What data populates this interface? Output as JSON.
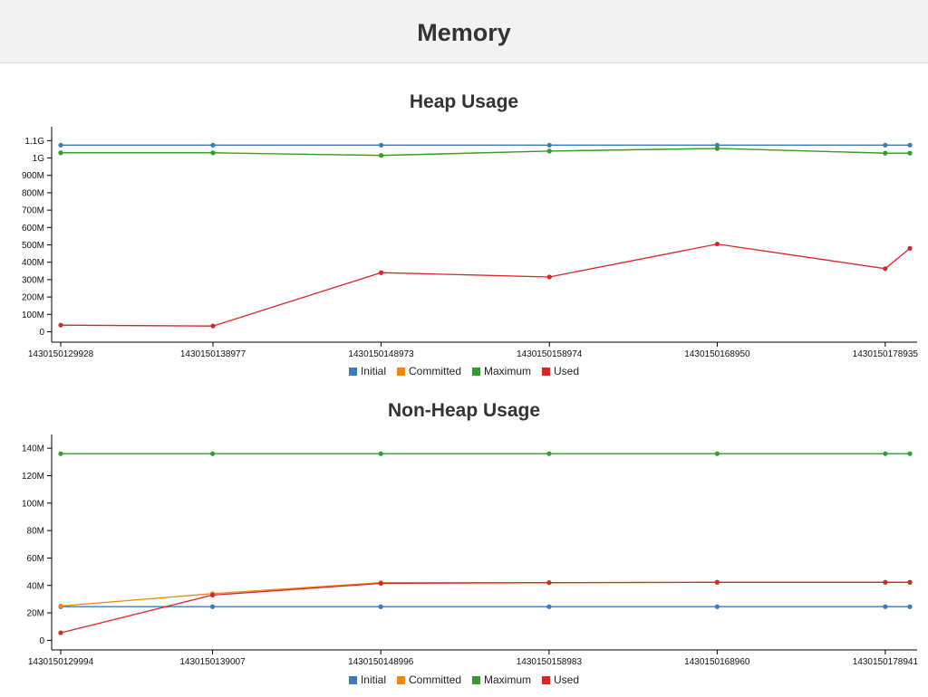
{
  "page": {
    "title": "Memory"
  },
  "colors": {
    "Initial": "#3a7bbf",
    "Committed": "#f0870f",
    "Maximum": "#2ca02c",
    "Used": "#d62728"
  },
  "legend": [
    "Initial",
    "Committed",
    "Maximum",
    "Used"
  ],
  "chart_data": [
    {
      "type": "line",
      "title": "Heap Usage",
      "x_tick_labels": [
        "1430150129928",
        "1430150138977",
        "1430150148973",
        "1430150158974",
        "1430150168950",
        "1430150178935"
      ],
      "y_tick_labels": [
        "0",
        "100M",
        "200M",
        "300M",
        "400M",
        "500M",
        "600M",
        "700M",
        "800M",
        "900M",
        "1G",
        "1.1G"
      ],
      "ylim_mb": [
        -60,
        1180
      ],
      "grid": false,
      "legend_position": "bottom",
      "x": [
        1430150129928,
        1430150138977,
        1430150148973,
        1430150158974,
        1430150168950,
        1430150178935,
        1430150180400
      ],
      "series": [
        {
          "name": "Initial",
          "values_mb": [
            1074,
            1074,
            1074,
            1074,
            1074,
            1074,
            1074
          ]
        },
        {
          "name": "Committed",
          "values_mb": [
            1030,
            1030,
            1015,
            1040,
            1055,
            1028,
            1028
          ]
        },
        {
          "name": "Maximum",
          "values_mb": [
            1030,
            1030,
            1015,
            1040,
            1055,
            1028,
            1028
          ]
        },
        {
          "name": "Used",
          "values_mb": [
            38,
            33,
            340,
            315,
            505,
            363,
            480
          ]
        }
      ]
    },
    {
      "type": "line",
      "title": "Non-Heap Usage",
      "x_tick_labels": [
        "1430150129994",
        "1430150139007",
        "1430150148996",
        "1430150158983",
        "1430150168960",
        "1430150178941"
      ],
      "y_tick_labels": [
        "0",
        "20M",
        "40M",
        "60M",
        "80M",
        "100M",
        "120M",
        "140M"
      ],
      "ylim_mb": [
        -7,
        150
      ],
      "grid": false,
      "legend_position": "bottom",
      "x": [
        1430150129994,
        1430150139007,
        1430150148996,
        1430150158983,
        1430150168960,
        1430150178941,
        1430150180400
      ],
      "series": [
        {
          "name": "Initial",
          "values_mb": [
            24.5,
            24.5,
            24.5,
            24.5,
            24.5,
            24.5,
            24.5
          ]
        },
        {
          "name": "Committed",
          "values_mb": [
            25,
            34,
            42,
            42,
            42.3,
            42.3,
            42.3
          ]
        },
        {
          "name": "Maximum",
          "values_mb": [
            136,
            136,
            136,
            136,
            136,
            136,
            136
          ]
        },
        {
          "name": "Used",
          "values_mb": [
            5.5,
            33,
            41.5,
            42,
            42.3,
            42.3,
            42.3
          ]
        }
      ]
    }
  ]
}
